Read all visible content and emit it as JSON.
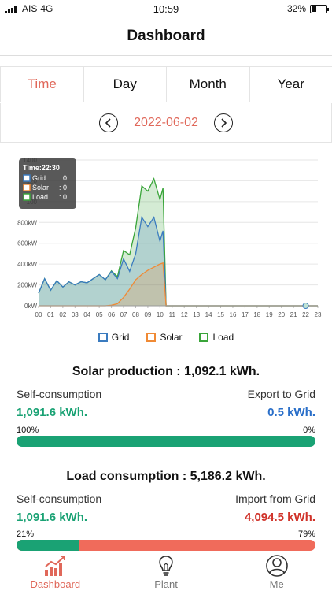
{
  "status": {
    "carrier": "AIS",
    "network": "4G",
    "time": "10:59",
    "battery": "32%",
    "battery_level": 0.32
  },
  "header": {
    "title": "Dashboard"
  },
  "tabs": [
    {
      "label": "Time",
      "active": true
    },
    {
      "label": "Day",
      "active": false
    },
    {
      "label": "Month",
      "active": false
    },
    {
      "label": "Year",
      "active": false
    }
  ],
  "date": {
    "value": "2022-06-02"
  },
  "tooltip": {
    "title": "Time:22:30",
    "rows": [
      {
        "name": "Grid",
        "value": ": 0"
      },
      {
        "name": "Solar",
        "value": ": 0"
      },
      {
        "name": "Load",
        "value": ": 0"
      }
    ]
  },
  "chart_data": {
    "type": "area",
    "x": [
      "00",
      "00:30",
      "01",
      "01:30",
      "02",
      "02:30",
      "03",
      "03:30",
      "04",
      "04:30",
      "05",
      "05:30",
      "06",
      "06:30",
      "07",
      "07:30",
      "08",
      "08:30",
      "09",
      "09:30",
      "10",
      "10:15",
      "10:30",
      "11",
      "12",
      "13",
      "14",
      "15",
      "16",
      "17",
      "18",
      "19",
      "20",
      "21",
      "22",
      "23"
    ],
    "xticks": [
      "00",
      "01",
      "02",
      "03",
      "04",
      "05",
      "06",
      "07",
      "08",
      "09",
      "10",
      "11",
      "12",
      "13",
      "14",
      "15",
      "16",
      "17",
      "18",
      "19",
      "20",
      "21",
      "22",
      "23"
    ],
    "yticks": [
      "0kW",
      "200kW",
      "400kW",
      "600kW",
      "800kW",
      "100",
      "120",
      "1400"
    ],
    "ylim": [
      0,
      1400
    ],
    "series": [
      {
        "name": "Grid",
        "color": "#3a7bbf",
        "values": [
          120,
          260,
          150,
          240,
          180,
          230,
          200,
          230,
          220,
          260,
          300,
          250,
          330,
          260,
          450,
          330,
          500,
          850,
          760,
          850,
          620,
          720,
          0,
          0,
          0,
          0,
          0,
          0,
          0,
          0,
          0,
          0,
          0,
          0,
          0,
          0
        ]
      },
      {
        "name": "Solar",
        "color": "#f08a35",
        "values": [
          0,
          0,
          0,
          0,
          0,
          0,
          0,
          0,
          0,
          0,
          0,
          0,
          5,
          20,
          80,
          160,
          250,
          300,
          340,
          370,
          400,
          410,
          0,
          0,
          0,
          0,
          0,
          0,
          0,
          0,
          0,
          0,
          0,
          0,
          0,
          0
        ]
      },
      {
        "name": "Load",
        "color": "#3aa53a",
        "values": [
          120,
          260,
          150,
          240,
          180,
          230,
          200,
          230,
          220,
          260,
          300,
          250,
          335,
          280,
          530,
          490,
          750,
          1150,
          1100,
          1220,
          1020,
          1130,
          0,
          0,
          0,
          0,
          0,
          0,
          0,
          0,
          0,
          0,
          0,
          0,
          0,
          0
        ]
      }
    ]
  },
  "solar": {
    "title": "Solar production : 1,092.1 kWh.",
    "left_label": "Self-consumption",
    "left_value": "1,091.6 kWh.",
    "right_label": "Export to Grid",
    "right_value": "0.5 kWh.",
    "left_pct": "100%",
    "right_pct": "0%",
    "fraction": 1.0
  },
  "load": {
    "title": "Load consumption : 5,186.2 kWh.",
    "left_label": "Self-consumption",
    "left_value": "1,091.6 kWh.",
    "right_label": "Import from Grid",
    "right_value": "4,094.5 kWh.",
    "left_pct": "21%",
    "right_pct": "79%",
    "fraction": 0.21
  },
  "nav": [
    {
      "label": "Dashboard",
      "icon": "chart-icon",
      "active": true
    },
    {
      "label": "Plant",
      "icon": "bulb-icon",
      "active": false
    },
    {
      "label": "Me",
      "icon": "user-icon",
      "active": false
    }
  ],
  "colors": {
    "accent": "#e0685a",
    "green": "#1aa274",
    "blue": "#2a6fc9",
    "red": "#d0332a"
  }
}
